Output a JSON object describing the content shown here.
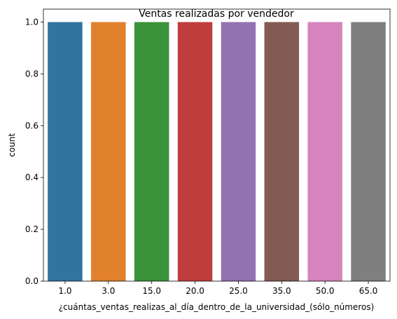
{
  "chart_data": {
    "type": "bar",
    "title": "Ventas realizadas por vendedor",
    "xlabel": "¿cuántas_ventas_realizas_al_día_dentro_de_la_universidad_(sólo_números)",
    "ylabel": "count",
    "categories": [
      "1.0",
      "3.0",
      "15.0",
      "20.0",
      "25.0",
      "35.0",
      "50.0",
      "65.0"
    ],
    "values": [
      1,
      1,
      1,
      1,
      1,
      1,
      1,
      1
    ],
    "colors": [
      "#3274a1",
      "#e1812c",
      "#3a923a",
      "#c03d3e",
      "#9372b2",
      "#845b53",
      "#d684bd",
      "#7f7f7f"
    ],
    "ylim": [
      0,
      1.05
    ],
    "yticks": [
      "0.0",
      "0.2",
      "0.4",
      "0.6",
      "0.8",
      "1.0"
    ],
    "grid": false,
    "legend": "none"
  }
}
